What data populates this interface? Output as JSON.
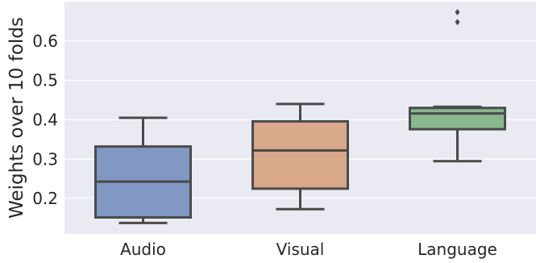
{
  "chart_data": {
    "type": "box",
    "title": "",
    "xlabel": "",
    "ylabel": "Weights over 10 folds",
    "ylim": [
      0.11,
      0.7
    ],
    "yticks": [
      "0.2",
      "0.3",
      "0.4",
      "0.5",
      "0.6"
    ],
    "grid": true,
    "background": "#EAEAF2",
    "categories": [
      "Audio",
      "Visual",
      "Language"
    ],
    "boxes": [
      {
        "name": "Audio",
        "whislo": 0.138,
        "q1": 0.152,
        "median": 0.243,
        "q3": 0.332,
        "whishi": 0.405,
        "fliers": [],
        "color": "#8197C4"
      },
      {
        "name": "Visual",
        "whislo": 0.173,
        "q1": 0.225,
        "median": 0.322,
        "q3": 0.396,
        "whishi": 0.44,
        "fliers": [],
        "color": "#D9A78A"
      },
      {
        "name": "Language",
        "whislo": 0.295,
        "q1": 0.376,
        "median": 0.416,
        "q3": 0.43,
        "whishi": 0.433,
        "fliers": [
          0.648,
          0.673
        ],
        "color": "#87B88F"
      }
    ]
  }
}
